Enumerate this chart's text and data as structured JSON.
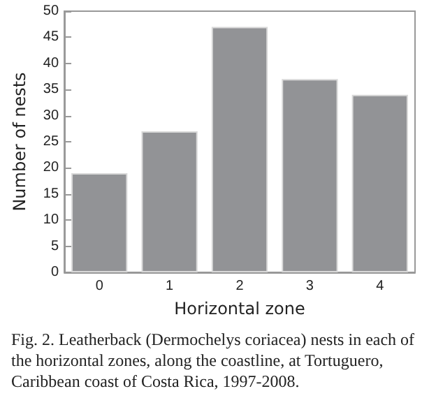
{
  "chart_data": {
    "type": "bar",
    "xlabel": "Horizontal zone",
    "ylabel": "Number of nests",
    "categories": [
      "0",
      "1",
      "2",
      "3",
      "4"
    ],
    "values": [
      19,
      27,
      47,
      37,
      34
    ],
    "color": "#929396",
    "ylim": [
      0,
      50
    ],
    "yticks": [
      0,
      5,
      10,
      15,
      20,
      25,
      30,
      35,
      40,
      45,
      50
    ],
    "grid": false,
    "annotations": [
      "Fig. 2. Leatherback (Dermochelys coriacea) nests in each of the horizontal zones, along the coastline, at Tortuguero, Caribbean coast of Costa Rica, 1997-2008."
    ]
  }
}
